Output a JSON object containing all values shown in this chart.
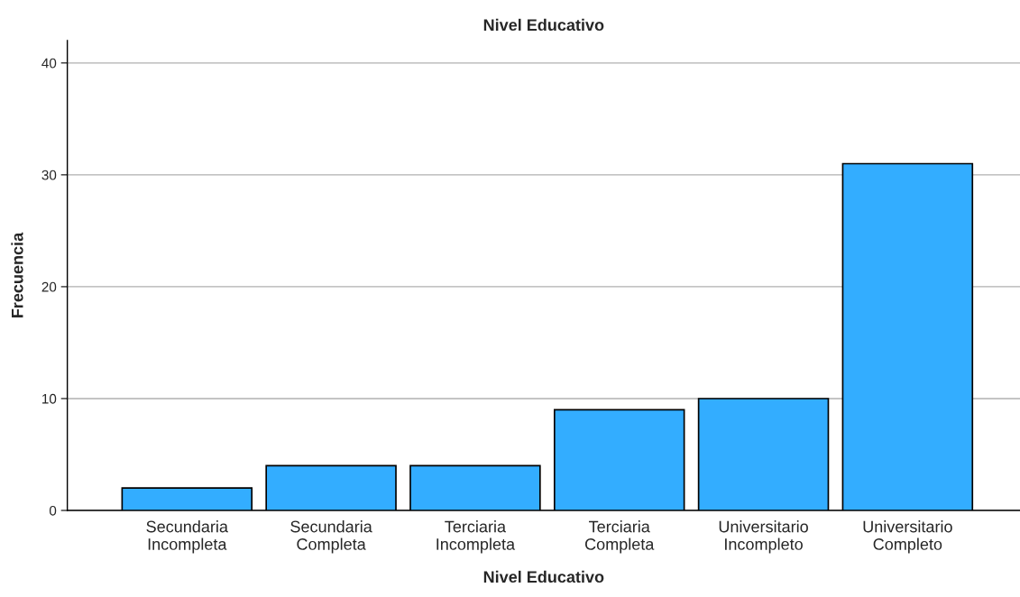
{
  "chart_data": {
    "type": "bar",
    "title": "Nivel Educativo",
    "xlabel": "Nivel Educativo",
    "ylabel": "Frecuencia",
    "categories": [
      "Secundaria\nIncompleta",
      "Secundaria\nCompleta",
      "Terciaria\nIncompleta",
      "Terciaria\nCompleta",
      "Universitario\nIncompleto",
      "Universitario\nCompleto"
    ],
    "values": [
      2,
      4,
      4,
      9,
      10,
      31
    ],
    "color": "#33adff",
    "ylim": [
      0,
      42
    ],
    "yticks": [
      0,
      10,
      20,
      30,
      40
    ],
    "grid": "y"
  }
}
